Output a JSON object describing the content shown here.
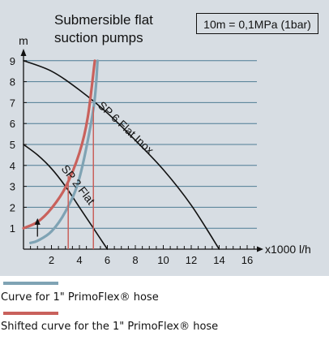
{
  "chart_data": {
    "type": "line",
    "title": [
      "Submersible flat",
      "suction pumps"
    ],
    "note": "10m = 0,1MPa (1bar)",
    "ylabel": "m",
    "xlabel": "x1000 l/h",
    "xlim": [
      0,
      17.5
    ],
    "ylim": [
      0,
      9.3
    ],
    "x_ticks": [
      2,
      4,
      6,
      8,
      10,
      12,
      14,
      16
    ],
    "y_ticks": [
      1,
      2,
      3,
      4,
      5,
      6,
      7,
      8,
      9
    ],
    "series": [
      {
        "name": "SP 6 Flat Inox",
        "color": "#111111",
        "x": [
          0,
          2,
          4,
          6,
          8,
          10,
          12,
          14
        ],
        "y": [
          9.0,
          8.5,
          7.6,
          6.5,
          5.2,
          3.8,
          2.1,
          0
        ]
      },
      {
        "name": "SP 2 Flat",
        "color": "#111111",
        "x": [
          0,
          1,
          2,
          3,
          4,
          5,
          6
        ],
        "y": [
          5.0,
          4.5,
          3.85,
          3.0,
          2.0,
          1.0,
          0
        ]
      },
      {
        "name": "Curve for 1\" PrimoFlex® hose",
        "color": "#7fa3b4",
        "x": [
          0.5,
          1,
          2,
          3,
          4,
          5,
          5.3
        ],
        "y": [
          0.3,
          0.4,
          0.85,
          1.8,
          3.4,
          6.7,
          9.0
        ]
      },
      {
        "name": "Shifted curve for the 1\" PrimoFlex® hose",
        "color": "#c9615c",
        "x": [
          0,
          1,
          2,
          3,
          4,
          4.6,
          5.1
        ],
        "y": [
          1.0,
          1.3,
          1.95,
          2.95,
          4.6,
          6.3,
          9.0
        ]
      }
    ],
    "markers": [
      {
        "type": "vline",
        "x": 3.2,
        "y": 3.5,
        "color": "#c9615c"
      },
      {
        "type": "vline",
        "x": 5.0,
        "y": 6.8,
        "color": "#c9615c"
      },
      {
        "type": "arrow",
        "x": 1.0,
        "from": 0.6,
        "to": 1.4,
        "color": "#111111"
      }
    ],
    "annotations": [
      {
        "text": "SP 6 Flat Inox",
        "series": 0
      },
      {
        "text": "SP 2 Flat",
        "series": 1
      }
    ],
    "grid": "horizontal"
  },
  "legend": [
    {
      "color": "#7fa3b4",
      "text": "Curve for 1\" PrimoFlex® hose"
    },
    {
      "color": "#c9615c",
      "text": "Shifted curve for the 1\" PrimoFlex® hose"
    }
  ]
}
